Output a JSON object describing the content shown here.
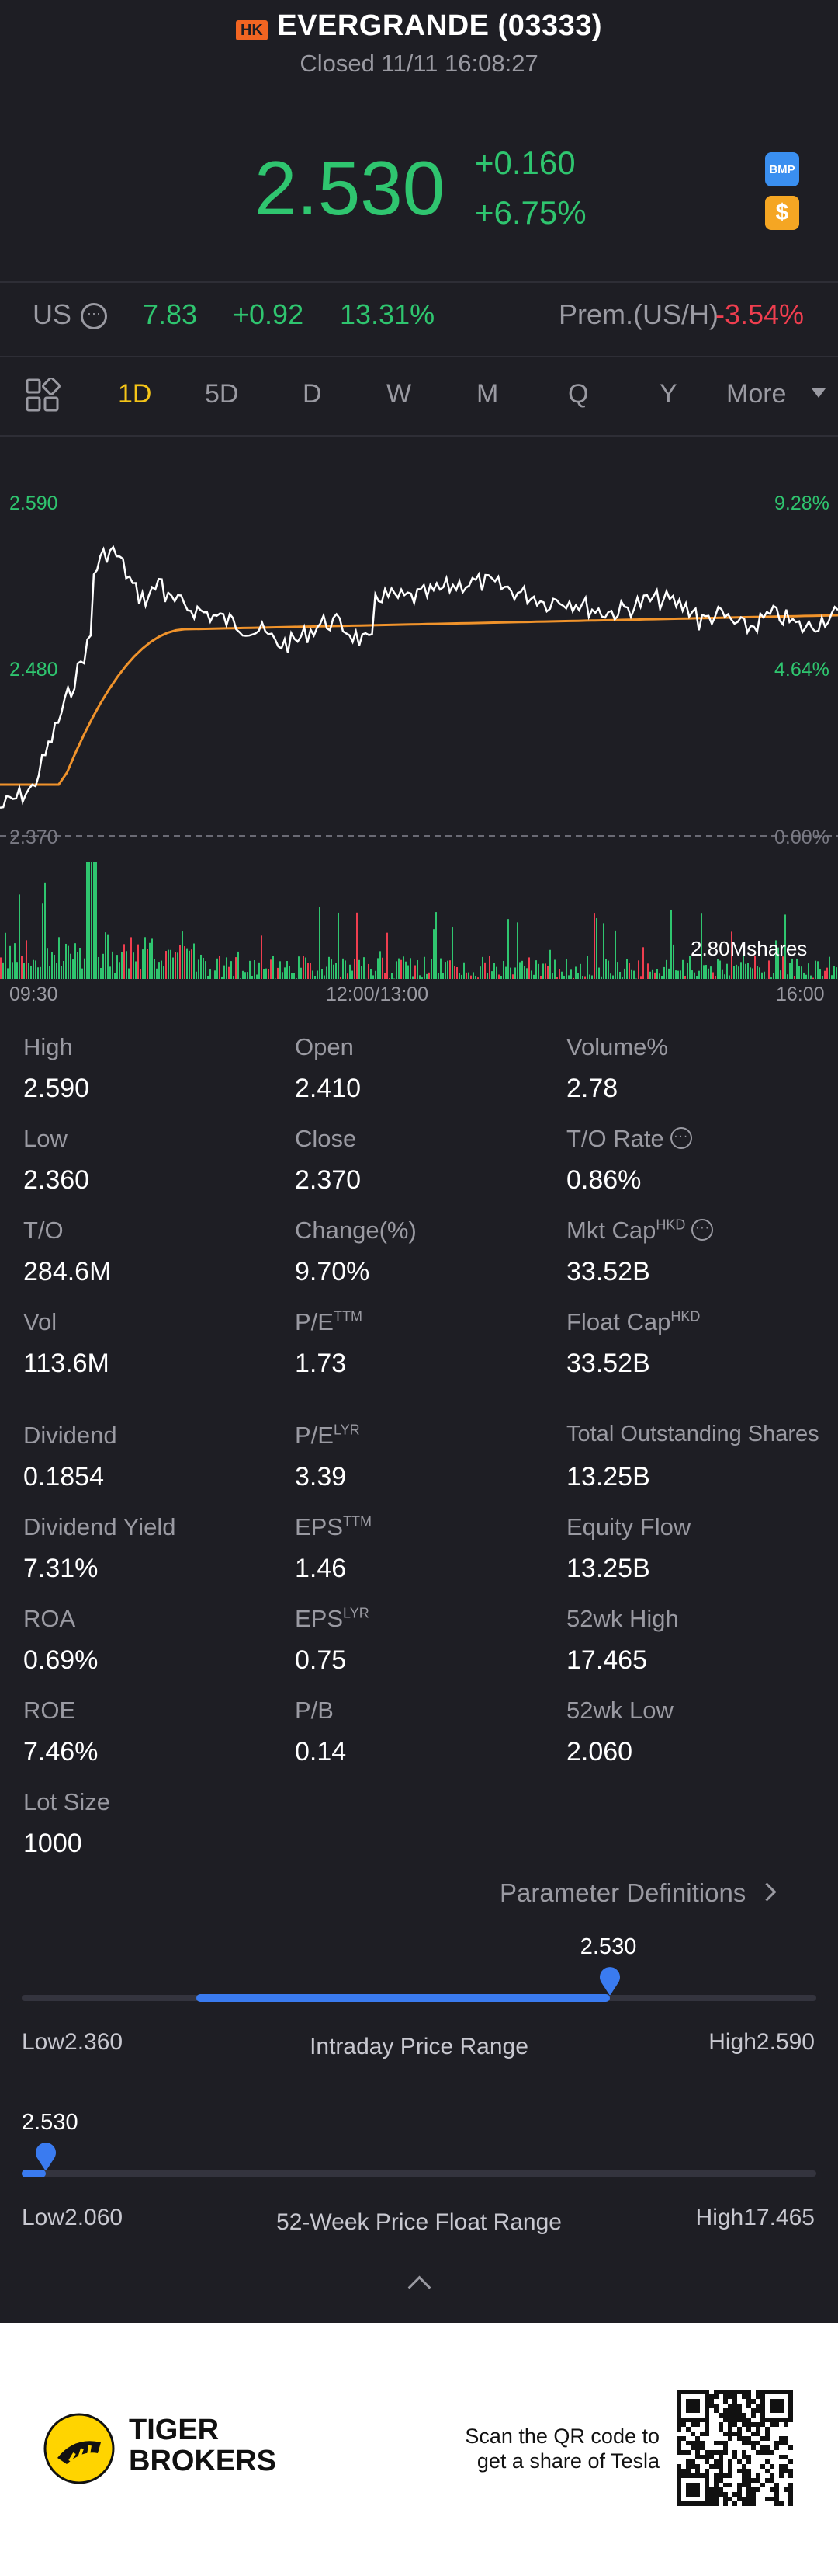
{
  "header": {
    "market_badge": "HK",
    "title": "EVERGRANDE (03333)",
    "status": "Closed 11/11 16:08:27",
    "price": "2.530",
    "change": "+0.160",
    "change_pct": "+6.75%",
    "bmp_label": "BMP",
    "dollar_label": "$"
  },
  "us_row": {
    "label": "US",
    "price": "7.83",
    "change": "+0.92",
    "change_pct": "13.31%",
    "premium_label": "Prem.(US/H)",
    "premium_value": "-3.54%"
  },
  "tabs": [
    "1D",
    "5D",
    "D",
    "W",
    "M",
    "Q",
    "Y",
    "More"
  ],
  "chart": {
    "price_high_label": "2.590",
    "price_mid_label": "2.480",
    "price_low_label": "2.370",
    "pct_high_label": "9.28%",
    "pct_mid_label": "4.64%",
    "pct_low_label": "0.00%",
    "volume_label": "2.80Mshares",
    "time_start": "09:30",
    "time_mid": "12:00/13:00",
    "time_end": "16:00"
  },
  "stats": {
    "high_label": "High",
    "high": "2.590",
    "open_label": "Open",
    "open": "2.410",
    "volume_pct_label": "Volume%",
    "volume_pct": "2.78",
    "low_label": "Low",
    "low": "2.360",
    "close_label": "Close",
    "close": "2.370",
    "to_rate_label": "T/O Rate",
    "to_rate": "0.86%",
    "to_label": "T/O",
    "to": "284.6M",
    "change_pct_label": "Change(%)",
    "change_pct": "9.70%",
    "mkt_cap_label": "Mkt Cap",
    "mkt_cap_sup": "HKD",
    "mkt_cap": "33.52B",
    "vol_label": "Vol",
    "vol": "113.6M",
    "pe_ttm_label": "P/E",
    "pe_ttm_sup": "TTM",
    "pe_ttm": "1.73",
    "float_cap_label": "Float Cap",
    "float_cap_sup": "HKD",
    "float_cap": "33.52B",
    "dividend_label": "Dividend",
    "dividend": "0.1854",
    "pe_lyr_label": "P/E",
    "pe_lyr_sup": "LYR",
    "pe_lyr": "3.39",
    "total_shares_label": "Total Outstanding Shares",
    "total_shares": "13.25B",
    "div_yield_label": "Dividend Yield",
    "div_yield": "7.31%",
    "eps_ttm_label": "EPS",
    "eps_ttm_sup": "TTM",
    "eps_ttm": "1.46",
    "equity_flow_label": "Equity Flow",
    "equity_flow": "13.25B",
    "roa_label": "ROA",
    "roa": "0.69%",
    "eps_lyr_label": "EPS",
    "eps_lyr_sup": "LYR",
    "eps_lyr": "0.75",
    "wk52_high_label": "52wk High",
    "wk52_high": "17.465",
    "roe_label": "ROE",
    "roe": "7.46%",
    "pb_label": "P/B",
    "pb": "0.14",
    "wk52_low_label": "52wk Low",
    "wk52_low": "2.060",
    "lot_size_label": "Lot Size",
    "lot_size": "1000"
  },
  "param_link": "Parameter Definitions",
  "intraday_range": {
    "current": "2.530",
    "low_label": "Low2.360",
    "title": "Intraday Price Range",
    "high_label": "High2.590",
    "fill_start_fraction": 0.22,
    "current_fraction": 0.74
  },
  "week52_range": {
    "current": "2.530",
    "low_label": "Low2.060",
    "title": "52-Week Price Float Range",
    "high_label": "High17.465",
    "current_fraction": 0.03
  },
  "footer": {
    "brand_line1": "TIGER",
    "brand_line2": "BROKERS",
    "qr_text_line1": "Scan the QR code to",
    "qr_text_line2": "get a share of Tesla"
  },
  "colors": {
    "background": "#1e1e24",
    "up": "#2fc56f",
    "down": "#ef3e4f",
    "accent": "#3a7bf0",
    "active_tab": "#f5c518",
    "avg_line": "#f0932b"
  }
}
